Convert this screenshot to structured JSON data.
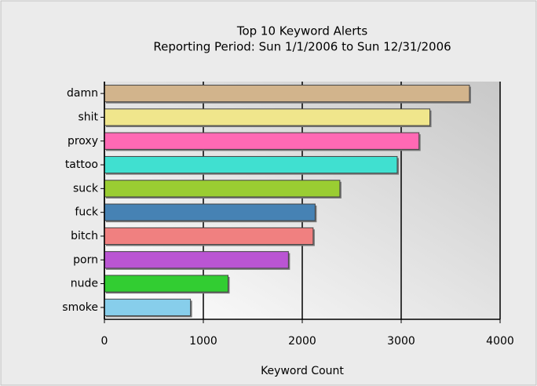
{
  "chart_data": {
    "type": "barh",
    "title": "Top 10 Keyword Alerts",
    "subtitle": "Reporting Period: Sun 1/1/2006 to Sun 12/31/2006",
    "xlabel": "Keyword Count",
    "categories": [
      "damn",
      "shit",
      "proxy",
      "tattoo",
      "suck",
      "fuck",
      "bitch",
      "porn",
      "nude",
      "smoke"
    ],
    "values": [
      3690,
      3290,
      3180,
      2960,
      2380,
      2130,
      2110,
      1860,
      1250,
      870
    ],
    "colors": [
      "#d2b48c",
      "#f0e68c",
      "#ff69b4",
      "#40e0d0",
      "#9acd32",
      "#4682b4",
      "#f08080",
      "#ba55d3",
      "#32cd32",
      "#87ceeb"
    ],
    "xlim": [
      0,
      4000
    ],
    "xticks": [
      0,
      1000,
      2000,
      3000,
      4000
    ],
    "grid": true
  }
}
